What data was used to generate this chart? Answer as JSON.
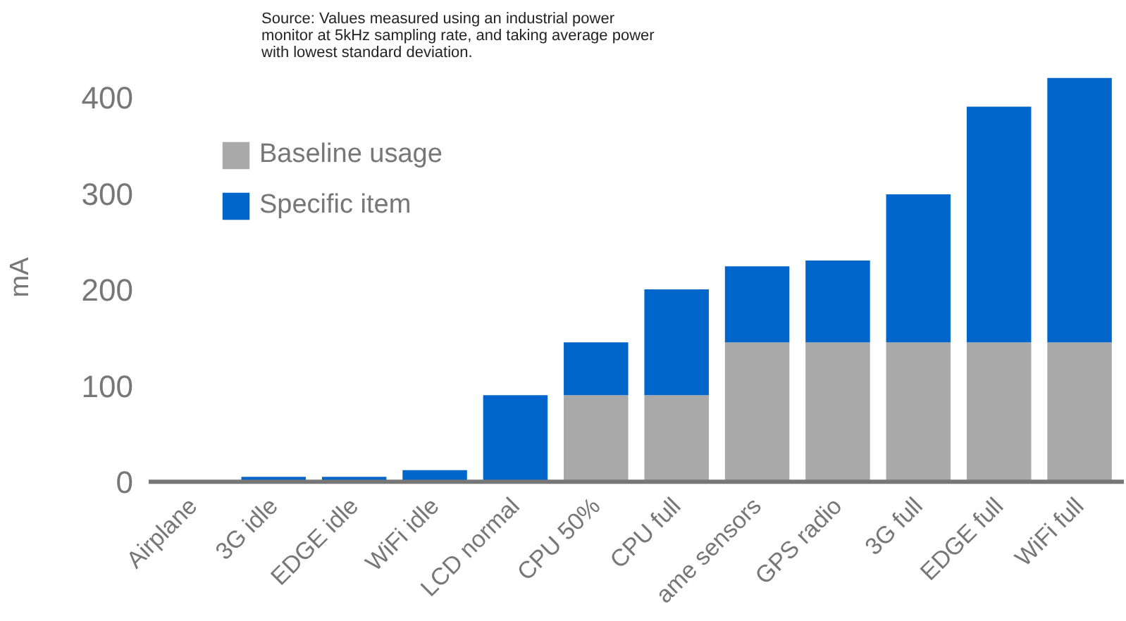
{
  "chart_data": {
    "type": "bar",
    "stacked": true,
    "ylabel": "mA",
    "annotations": [
      "Source: Values measured using an industrial power monitor at 5kHz sampling rate, and taking average power with lowest standard deviation."
    ],
    "categories": [
      "Airplane",
      "3G idle",
      "EDGE idle",
      "WiFi idle",
      "LCD normal",
      "CPU 50%",
      "CPU full",
      "ame sensors",
      "GPS radio",
      "3G full",
      "EDGE full",
      "WiFi full"
    ],
    "series": [
      {
        "name": "Baseline usage",
        "color": "#a9a9a9",
        "values": [
          0,
          0,
          0,
          0,
          0,
          90,
          90,
          145,
          145,
          145,
          145,
          145
        ]
      },
      {
        "name": "Specific item",
        "color": "#0066cc",
        "values": [
          0,
          5,
          5,
          12,
          90,
          55,
          110,
          79,
          85,
          154,
          245,
          275
        ]
      }
    ],
    "ylim": [
      -5,
      430
    ],
    "yticks": [
      0,
      100,
      200,
      300,
      400
    ],
    "grid": false,
    "legend": "top left"
  }
}
